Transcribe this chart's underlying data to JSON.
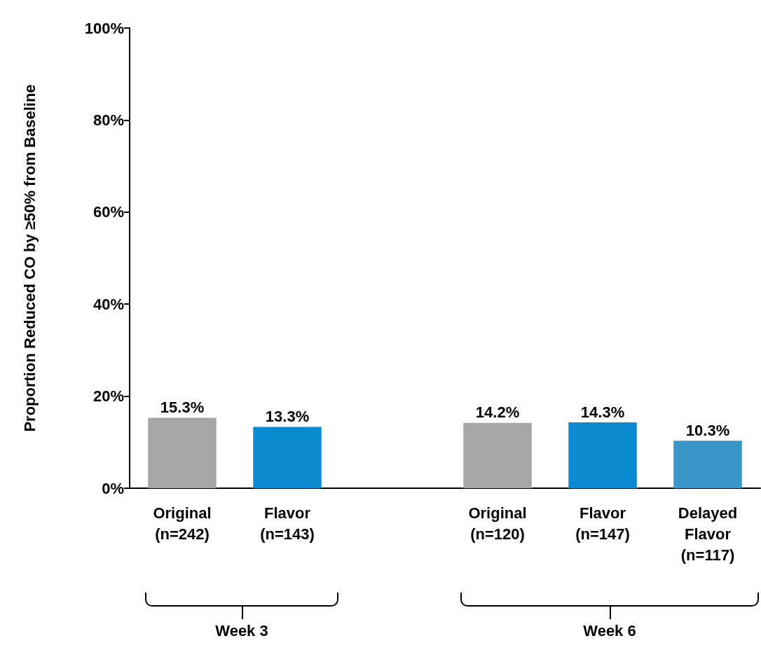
{
  "chart_data": {
    "type": "bar",
    "ylabel": "Proportion Reduced CO by ≥50% from Baseline",
    "categories": [
      "Original\n(n=242)",
      "Flavor\n(n=143)",
      null,
      "Original\n(n=120)",
      "Flavor\n(n=147)",
      "Delayed\nFlavor\n(n=117)"
    ],
    "values": [
      15.3,
      13.3,
      null,
      14.2,
      14.3,
      10.3
    ],
    "value_labels": [
      "15.3%",
      "13.3%",
      null,
      "14.2%",
      "14.3%",
      "10.3%"
    ],
    "colors": [
      "#a6a6a6",
      "#0a8ad0",
      "#a6a6a6",
      "#a6a6a6",
      "#0a8ad0",
      "#3a96c8"
    ],
    "ylim": [
      0,
      100
    ],
    "yticks": [
      {
        "value": 0,
        "label": "0%"
      },
      {
        "value": 20,
        "label": "20%"
      },
      {
        "value": 40,
        "label": "40%"
      },
      {
        "value": 60,
        "label": "60%"
      },
      {
        "value": 80,
        "label": "80%"
      },
      {
        "value": 100,
        "label": "100%"
      }
    ],
    "annotations": [
      "Week 3",
      "Week 6"
    ]
  }
}
